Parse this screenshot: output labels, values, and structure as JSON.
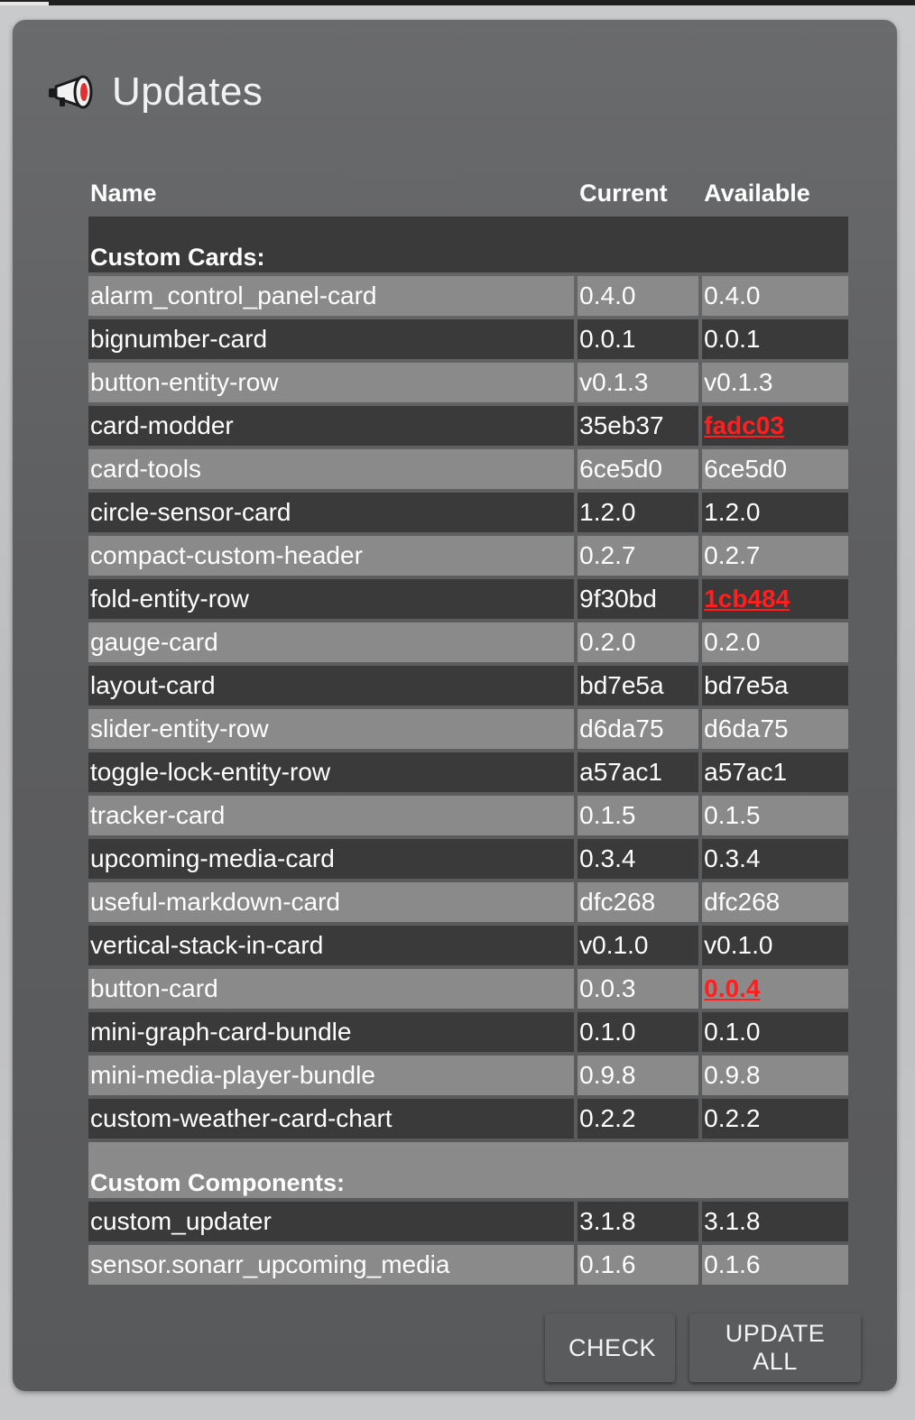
{
  "header": {
    "title": "Updates",
    "icon": "megaphone-icon"
  },
  "table": {
    "columns": [
      "Name",
      "Current",
      "Available"
    ],
    "sections": [
      {
        "label": "Custom Cards:",
        "rows": [
          {
            "name": "alarm_control_panel-card",
            "current": "0.4.0",
            "available": "0.4.0",
            "update": false
          },
          {
            "name": "bignumber-card",
            "current": "0.0.1",
            "available": "0.0.1",
            "update": false
          },
          {
            "name": "button-entity-row",
            "current": "v0.1.3",
            "available": "v0.1.3",
            "update": false
          },
          {
            "name": "card-modder",
            "current": "35eb37",
            "available": "fadc03",
            "update": true
          },
          {
            "name": "card-tools",
            "current": "6ce5d0",
            "available": "6ce5d0",
            "update": false
          },
          {
            "name": "circle-sensor-card",
            "current": "1.2.0",
            "available": "1.2.0",
            "update": false
          },
          {
            "name": "compact-custom-header",
            "current": "0.2.7",
            "available": "0.2.7",
            "update": false
          },
          {
            "name": "fold-entity-row",
            "current": "9f30bd",
            "available": "1cb484",
            "update": true
          },
          {
            "name": "gauge-card",
            "current": "0.2.0",
            "available": "0.2.0",
            "update": false
          },
          {
            "name": "layout-card",
            "current": "bd7e5a",
            "available": "bd7e5a",
            "update": false
          },
          {
            "name": "slider-entity-row",
            "current": "d6da75",
            "available": "d6da75",
            "update": false
          },
          {
            "name": "toggle-lock-entity-row",
            "current": "a57ac1",
            "available": "a57ac1",
            "update": false
          },
          {
            "name": "tracker-card",
            "current": "0.1.5",
            "available": "0.1.5",
            "update": false
          },
          {
            "name": "upcoming-media-card",
            "current": "0.3.4",
            "available": "0.3.4",
            "update": false
          },
          {
            "name": "useful-markdown-card",
            "current": "dfc268",
            "available": "dfc268",
            "update": false
          },
          {
            "name": "vertical-stack-in-card",
            "current": "v0.1.0",
            "available": "v0.1.0",
            "update": false
          },
          {
            "name": "button-card",
            "current": "0.0.3",
            "available": "0.0.4",
            "update": true
          },
          {
            "name": "mini-graph-card-bundle",
            "current": "0.1.0",
            "available": "0.1.0",
            "update": false
          },
          {
            "name": "mini-media-player-bundle",
            "current": "0.9.8",
            "available": "0.9.8",
            "update": false
          },
          {
            "name": "custom-weather-card-chart",
            "current": "0.2.2",
            "available": "0.2.2",
            "update": false
          }
        ]
      },
      {
        "label": "Custom Components:",
        "rows": [
          {
            "name": "custom_updater",
            "current": "3.1.8",
            "available": "3.1.8",
            "update": false
          },
          {
            "name": "sensor.sonarr_upcoming_media",
            "current": "0.1.6",
            "available": "0.1.6",
            "update": false
          }
        ]
      }
    ]
  },
  "buttons": {
    "check_label": "CHECK",
    "update_all_label": "UPDATE ALL"
  },
  "colors": {
    "update_available": "#ff1f1f",
    "row_light": "#8a8a8b",
    "row_dark": "#3a3a3a"
  }
}
